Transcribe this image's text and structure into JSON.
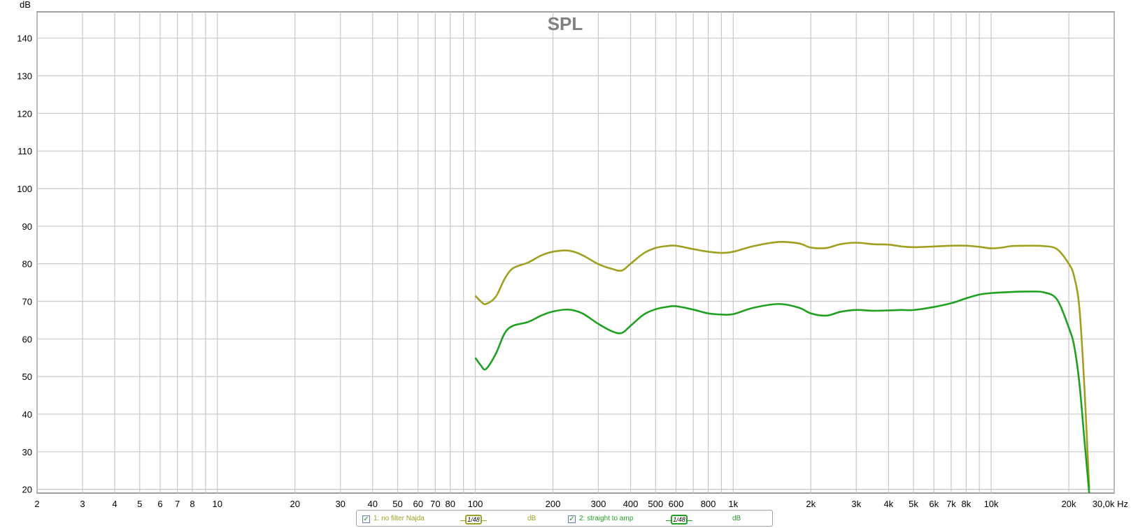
{
  "chart_data": {
    "type": "line",
    "title": "SPL",
    "ylabel": "dB",
    "xlabel": "Hz",
    "x_scale": "log",
    "xlim": [
      2,
      30000
    ],
    "ylim": [
      19,
      147
    ],
    "grid": true,
    "y_ticks": [
      20,
      30,
      40,
      50,
      60,
      70,
      80,
      90,
      100,
      110,
      120,
      130,
      140
    ],
    "y_tick_labels": [
      "20",
      "30",
      "40",
      "50",
      "60",
      "70",
      "80",
      "90",
      "100",
      "110",
      "120",
      "130",
      "140"
    ],
    "x_ticks": [
      2,
      3,
      4,
      5,
      6,
      7,
      8,
      10,
      20,
      30,
      40,
      50,
      60,
      70,
      80,
      100,
      200,
      300,
      400,
      500,
      600,
      800,
      1000,
      2000,
      3000,
      4000,
      5000,
      6000,
      7000,
      8000,
      10000,
      20000
    ],
    "x_tick_labels": [
      "2",
      "3",
      "4",
      "5",
      "6",
      "7",
      "8",
      "10",
      "20",
      "30",
      "40",
      "50",
      "60",
      "70",
      "80",
      "100",
      "200",
      "300",
      "400",
      "500",
      "600",
      "800",
      "1k",
      "2k",
      "3k",
      "4k",
      "5k",
      "6k",
      "7k",
      "8k",
      "10k",
      "20k"
    ],
    "x_end_label": "30,0k Hz",
    "series": [
      {
        "name": "1: no filter Najda",
        "color": "#a0a020",
        "x": [
          100,
          105,
          110,
          120,
          130,
          140,
          160,
          180,
          200,
          230,
          260,
          300,
          340,
          370,
          400,
          450,
          500,
          550,
          600,
          700,
          800,
          900,
          1000,
          1200,
          1500,
          1800,
          2000,
          2300,
          2600,
          3000,
          3500,
          4000,
          4500,
          5000,
          6000,
          7000,
          8000,
          9000,
          10000,
          11000,
          12000,
          14000,
          16000,
          18000,
          20000,
          21000,
          22000,
          23000,
          24000
        ],
        "y": [
          71.5,
          70.0,
          69.3,
          71.2,
          76.0,
          78.8,
          80.3,
          82.2,
          83.2,
          83.5,
          82.3,
          79.9,
          78.6,
          78.2,
          80.0,
          82.8,
          84.2,
          84.7,
          84.8,
          83.9,
          83.2,
          82.9,
          83.2,
          84.7,
          85.8,
          85.4,
          84.3,
          84.2,
          85.2,
          85.6,
          85.2,
          85.1,
          84.6,
          84.4,
          84.6,
          84.8,
          84.8,
          84.5,
          84.1,
          84.3,
          84.7,
          84.8,
          84.7,
          83.9,
          80.0,
          76.5,
          68.0,
          47.0,
          20.0
        ]
      },
      {
        "name": "2: straight to amp",
        "color": "#20a020",
        "x": [
          100,
          105,
          110,
          120,
          130,
          140,
          160,
          180,
          200,
          230,
          260,
          300,
          340,
          370,
          400,
          450,
          500,
          550,
          600,
          700,
          800,
          900,
          1000,
          1200,
          1500,
          1800,
          2000,
          2300,
          2600,
          3000,
          3500,
          4000,
          4500,
          5000,
          6000,
          7000,
          8000,
          9000,
          10000,
          12000,
          14000,
          16000,
          18000,
          20000,
          21000,
          22000,
          23000,
          24000
        ],
        "y": [
          55.0,
          53.0,
          52.0,
          56.0,
          61.5,
          63.5,
          64.5,
          66.2,
          67.3,
          67.8,
          66.8,
          64.0,
          62.0,
          61.6,
          63.5,
          66.5,
          67.9,
          68.5,
          68.7,
          67.8,
          66.8,
          66.5,
          66.6,
          68.3,
          69.3,
          68.3,
          66.8,
          66.2,
          67.2,
          67.7,
          67.5,
          67.6,
          67.7,
          67.7,
          68.5,
          69.5,
          70.8,
          71.8,
          72.2,
          72.5,
          72.6,
          72.4,
          70.5,
          63.0,
          58.0,
          48.0,
          33.0,
          19.0
        ]
      }
    ]
  },
  "legend": {
    "items": [
      {
        "label": "1: no filter Najda",
        "checked": true,
        "smoothing": "1/48",
        "unit": "dB",
        "color": "#a0a020"
      },
      {
        "label": "2: straight to amp",
        "checked": true,
        "smoothing": "1/48",
        "unit": "dB",
        "color": "#20a020"
      }
    ]
  }
}
